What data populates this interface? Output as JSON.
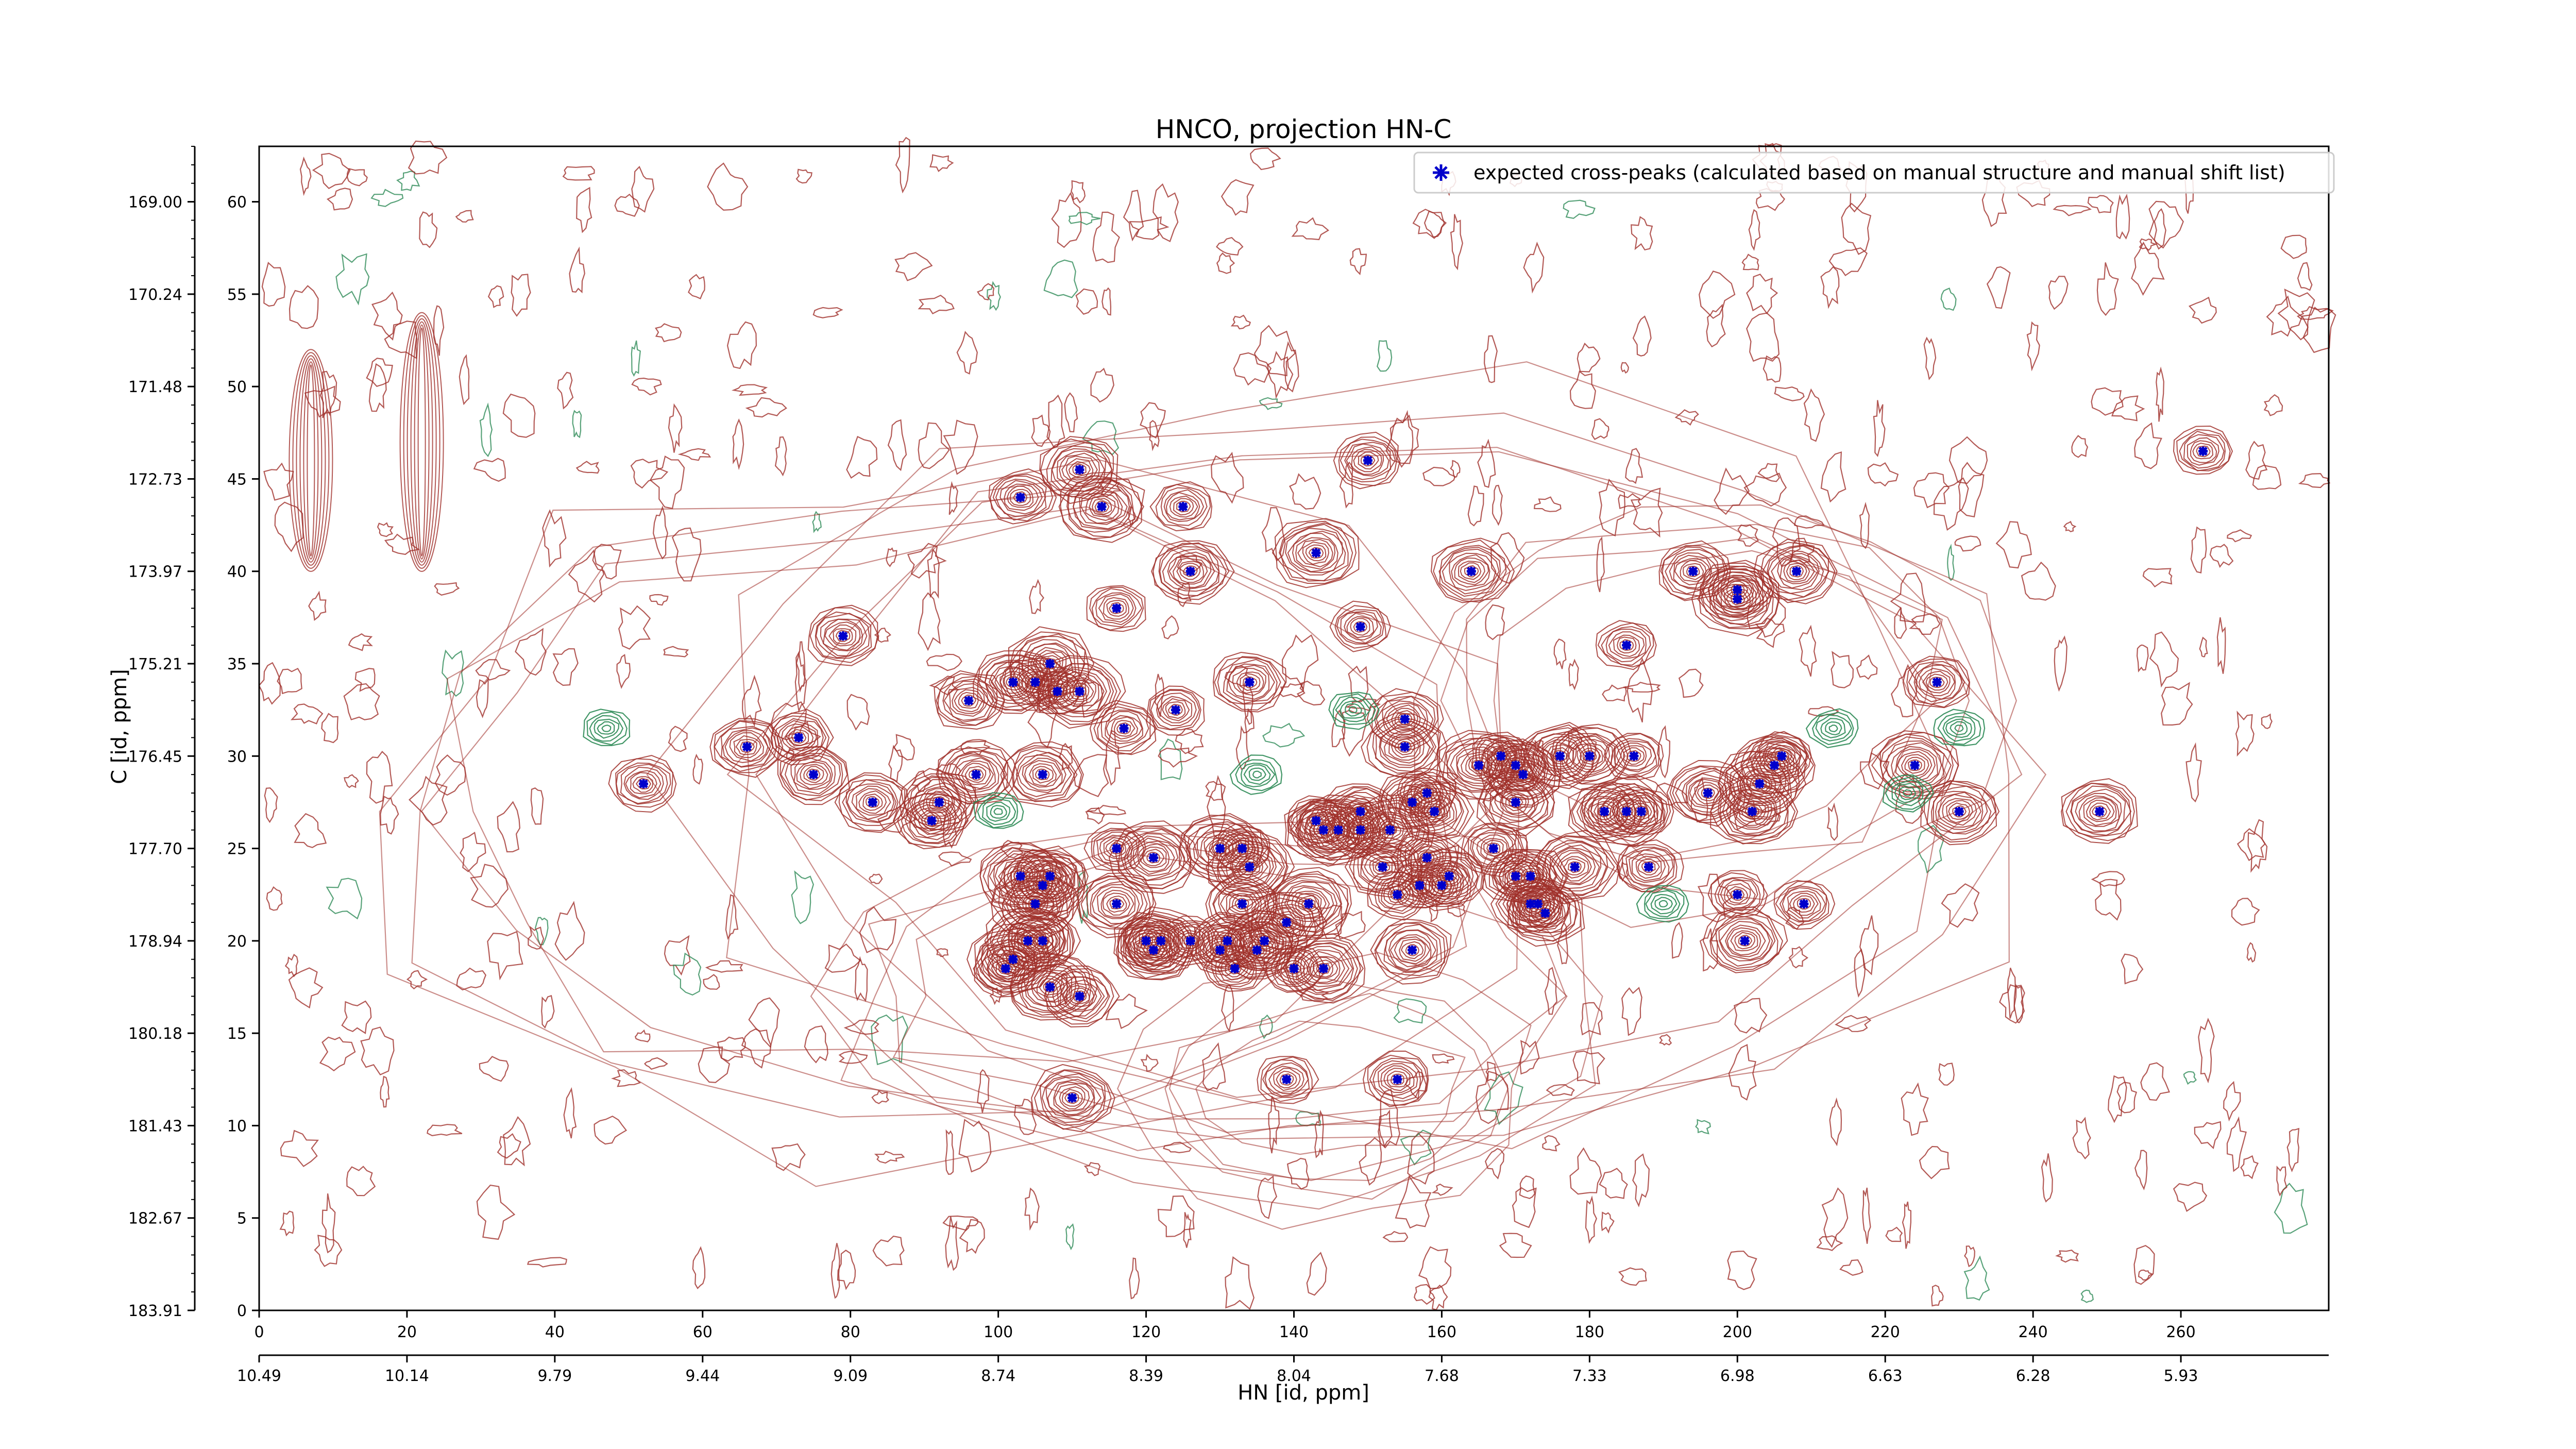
{
  "chart_data": {
    "type": "scatter",
    "title": "HNCO, projection HN-C",
    "xlabel": "HN [id, ppm]",
    "ylabel": "C [id, ppm]",
    "xlim": [
      0,
      280
    ],
    "ylim": [
      0,
      63
    ],
    "grid": false,
    "legend": {
      "position": "top-right",
      "entries": [
        "expected cross-peaks (calculated based on manual structure and manual shift list)"
      ]
    },
    "x_ticks_index": [
      "0",
      "20",
      "40",
      "60",
      "80",
      "100",
      "120",
      "140",
      "160",
      "180",
      "200",
      "220",
      "240",
      "260"
    ],
    "x_ticks_ppm": [
      "10.49",
      "10.14",
      "9.79",
      "9.44",
      "9.09",
      "8.74",
      "8.39",
      "8.04",
      "7.68",
      "7.33",
      "6.98",
      "6.63",
      "6.28",
      "5.93"
    ],
    "y_ticks_index": [
      "0",
      "5",
      "10",
      "15",
      "20",
      "25",
      "30",
      "35",
      "40",
      "45",
      "50",
      "55",
      "60"
    ],
    "y_ticks_ppm": [
      "183.91",
      "182.67",
      "181.43",
      "180.18",
      "178.94",
      "177.70",
      "176.45",
      "175.21",
      "173.97",
      "172.73",
      "171.48",
      "170.24",
      "169.00"
    ],
    "colors": {
      "positive_contour": "#a0302a",
      "negative_contour": "#2e8b57",
      "peak_marker": "#0000cc"
    },
    "series": [
      {
        "name": "expected cross-peaks (calculated based on manual structure and manual shift list)",
        "points": [
          [
            52,
            28.5
          ],
          [
            66,
            30.5
          ],
          [
            73,
            31
          ],
          [
            75,
            29
          ],
          [
            83,
            27.5
          ],
          [
            92,
            27.5
          ],
          [
            91,
            26.5
          ],
          [
            79,
            36.5
          ],
          [
            96,
            33
          ],
          [
            97,
            29
          ],
          [
            102,
            34
          ],
          [
            105,
            34
          ],
          [
            107,
            35
          ],
          [
            108,
            33.5
          ],
          [
            111,
            33.5
          ],
          [
            106,
            29
          ],
          [
            103,
            44
          ],
          [
            111,
            45.5
          ],
          [
            114,
            43.5
          ],
          [
            125,
            43.5
          ],
          [
            126,
            40
          ],
          [
            116,
            38
          ],
          [
            117,
            31.5
          ],
          [
            124,
            32.5
          ],
          [
            134,
            34
          ],
          [
            143,
            41
          ],
          [
            149,
            37
          ],
          [
            150,
            46
          ],
          [
            155,
            32
          ],
          [
            155,
            30.5
          ],
          [
            164,
            40
          ],
          [
            185,
            36
          ],
          [
            194,
            40
          ],
          [
            200,
            39
          ],
          [
            200,
            38.5
          ],
          [
            208,
            40
          ],
          [
            165,
            29.5
          ],
          [
            168,
            30
          ],
          [
            170,
            29.5
          ],
          [
            171,
            29
          ],
          [
            170,
            27.5
          ],
          [
            176,
            30
          ],
          [
            180,
            30
          ],
          [
            186,
            30
          ],
          [
            196,
            28
          ],
          [
            203,
            28.5
          ],
          [
            205,
            29.5
          ],
          [
            206,
            30
          ],
          [
            227,
            34
          ],
          [
            224,
            29.5
          ],
          [
            230,
            27
          ],
          [
            249,
            27
          ],
          [
            263,
            46.5
          ],
          [
            103,
            23.5
          ],
          [
            106,
            23
          ],
          [
            107,
            23.5
          ],
          [
            105,
            22
          ],
          [
            104,
            20
          ],
          [
            106,
            20
          ],
          [
            101,
            18.5
          ],
          [
            102,
            19
          ],
          [
            107,
            17.5
          ],
          [
            111,
            17
          ],
          [
            110,
            11.5
          ],
          [
            116,
            25
          ],
          [
            121,
            24.5
          ],
          [
            116,
            22
          ],
          [
            120,
            20
          ],
          [
            121,
            19.5
          ],
          [
            122,
            20
          ],
          [
            126,
            20
          ],
          [
            131,
            20
          ],
          [
            130,
            19.5
          ],
          [
            130,
            25
          ],
          [
            133,
            25
          ],
          [
            134,
            24
          ],
          [
            133,
            22
          ],
          [
            132,
            18.5
          ],
          [
            135,
            19.5
          ],
          [
            136,
            20
          ],
          [
            140,
            18.5
          ],
          [
            139,
            21
          ],
          [
            142,
            22
          ],
          [
            143,
            26.5
          ],
          [
            144,
            26
          ],
          [
            144,
            18.5
          ],
          [
            146,
            26
          ],
          [
            149,
            26
          ],
          [
            149,
            27
          ],
          [
            152,
            24
          ],
          [
            153,
            26
          ],
          [
            154,
            22.5
          ],
          [
            158,
            24.5
          ],
          [
            157,
            23
          ],
          [
            160,
            23
          ],
          [
            161,
            23.5
          ],
          [
            159,
            27
          ],
          [
            156,
            27.5
          ],
          [
            158,
            28
          ],
          [
            167,
            25
          ],
          [
            170,
            23.5
          ],
          [
            172,
            23.5
          ],
          [
            172,
            22
          ],
          [
            173,
            22
          ],
          [
            174,
            21.5
          ],
          [
            178,
            24
          ],
          [
            182,
            27
          ],
          [
            185,
            27
          ],
          [
            188,
            24
          ],
          [
            187,
            27
          ],
          [
            200,
            22.5
          ],
          [
            201,
            20
          ],
          [
            202,
            27
          ],
          [
            209,
            22
          ],
          [
            156,
            19.5
          ],
          [
            139,
            12.5
          ],
          [
            154,
            12.5
          ]
        ]
      }
    ]
  }
}
